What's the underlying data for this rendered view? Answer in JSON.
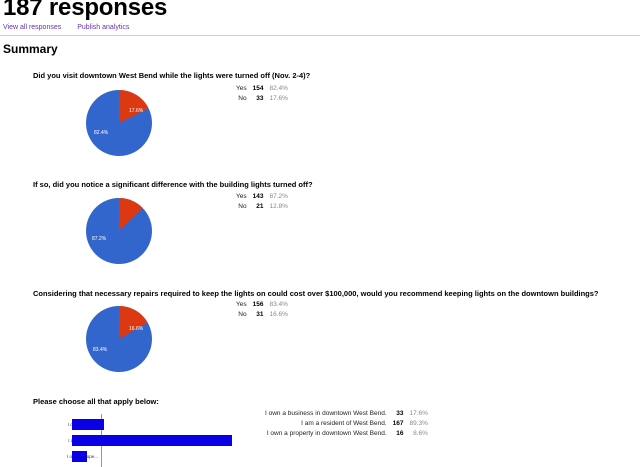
{
  "header": {
    "title": "187 responses",
    "view_all": "View all responses",
    "publish": "Publish analytics",
    "summary": "Summary"
  },
  "colors": {
    "blue": "#3366cc",
    "red": "#dc3912",
    "bar": "#0a00e6"
  },
  "questions": [
    {
      "text": "Did you visit downtown West Bend while the lights were turned off (Nov. 2-4)?",
      "rows": [
        {
          "label": "Yes",
          "count": "154",
          "pct": "82.4%"
        },
        {
          "label": "No",
          "count": "33",
          "pct": "17.6%"
        }
      ],
      "pie_labels": {
        "major": "82.4%",
        "minor": "17.6%"
      },
      "minor_fraction": 0.176
    },
    {
      "text": "If so, did you notice a significant difference with the building lights turned off?",
      "rows": [
        {
          "label": "Yes",
          "count": "143",
          "pct": "87.2%"
        },
        {
          "label": "No",
          "count": "21",
          "pct": "12.8%"
        }
      ],
      "pie_labels": {
        "major": "87.2%",
        "minor": ""
      },
      "minor_fraction": 0.128
    },
    {
      "text": "Considering that necessary repairs required to keep the lights on could cost over $100,000, would you recommend keeping lights on the downtown buildings?",
      "rows": [
        {
          "label": "Yes",
          "count": "156",
          "pct": "83.4%"
        },
        {
          "label": "No",
          "count": "31",
          "pct": "16.6%"
        }
      ],
      "pie_labels": {
        "major": "83.4%",
        "minor": "16.6%"
      },
      "minor_fraction": 0.166
    }
  ],
  "checkbox_question": {
    "text": "Please choose all that apply below:",
    "rows": [
      {
        "label": "I own a business in downtown West Bend.",
        "count": "33",
        "pct": "17.6%"
      },
      {
        "label": "I am a resident of West Bend.",
        "count": "167",
        "pct": "89.3%"
      },
      {
        "label": "I own a property in downtown West Bend.",
        "count": "16",
        "pct": "8.6%"
      }
    ]
  },
  "chart_data": {
    "type": "bar",
    "categories": [
      "I own a busin...",
      "I am a reside...",
      "I own a prope..."
    ],
    "values": [
      33,
      167,
      16
    ],
    "xlabel": "",
    "ylabel": ""
  }
}
